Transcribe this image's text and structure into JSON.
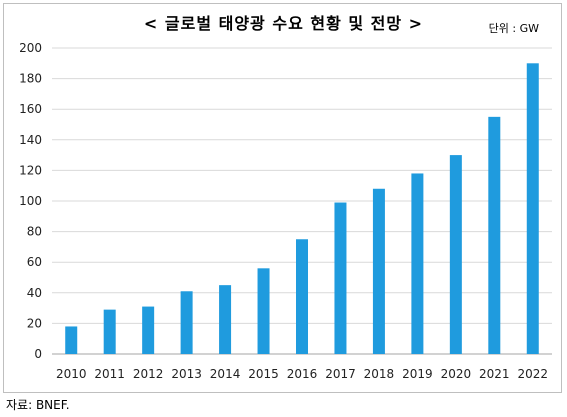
{
  "title": "< 글로벌 태양광 수요 현황 및 전망 >",
  "unit": "단위 : GW",
  "source": "자료: BNEF.",
  "colors": {
    "bar": "#1f9bde",
    "grid": "#d9d9d9",
    "axis": "#a6a6a6"
  },
  "chart_data": {
    "type": "bar",
    "title": "< 글로벌 태양광 수요 현황 및 전망 >",
    "xlabel": "",
    "ylabel": "",
    "categories": [
      "2010",
      "2011",
      "2012",
      "2013",
      "2014",
      "2015",
      "2016",
      "2017",
      "2018",
      "2019",
      "2020",
      "2021",
      "2022"
    ],
    "values": [
      18,
      29,
      31,
      41,
      45,
      56,
      75,
      99,
      108,
      118,
      130,
      155,
      190
    ],
    "ylim": [
      0,
      200
    ],
    "yticks": [
      0,
      20,
      40,
      60,
      80,
      100,
      120,
      140,
      160,
      180,
      200
    ],
    "grid": true,
    "legend": "none"
  }
}
